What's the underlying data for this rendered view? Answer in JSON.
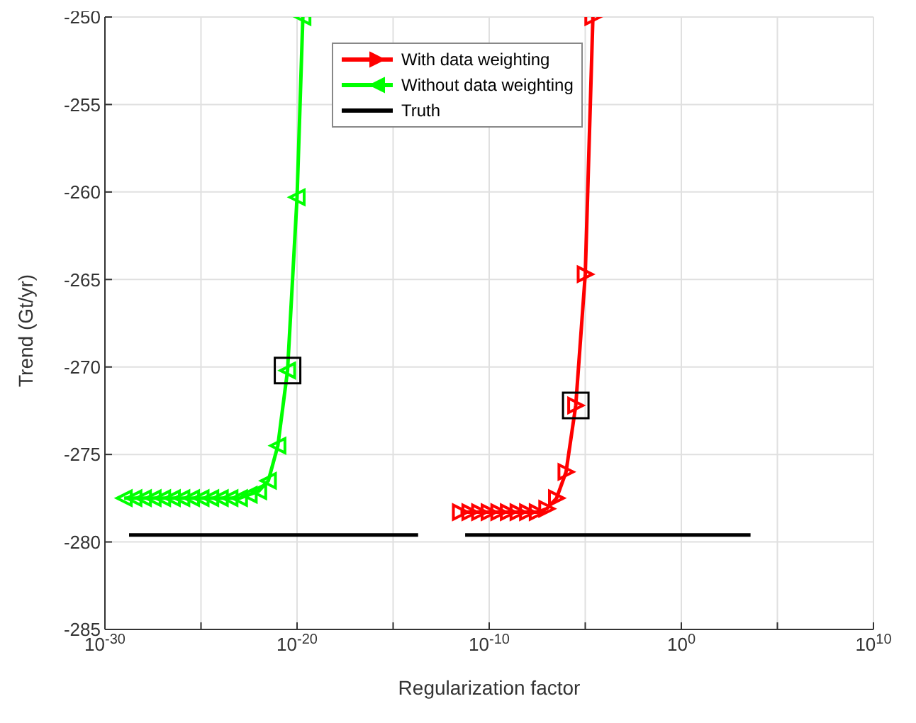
{
  "chart_data": {
    "type": "line",
    "xlabel": "Regularization factor",
    "ylabel": "Trend (Gt/yr)",
    "log": "x",
    "grid": true,
    "legend": "top right",
    "line_style": "solid",
    "xlim": [
      1e-30,
      10000000000.0
    ],
    "xticks": [
      {
        "value": 1e-30,
        "label": "10$^{-30}$"
      },
      {
        "value": 1e-25,
        "label": null
      },
      {
        "value": 1e-20,
        "label": "10$^{-20}$"
      },
      {
        "value": 1e-15,
        "label": null
      },
      {
        "value": 1e-10,
        "label": "10$^{-10}$"
      },
      {
        "value": 1e-05,
        "label": null
      },
      {
        "value": 1,
        "label": "10$^{0}$"
      },
      {
        "value": 100000.0,
        "label": null
      },
      {
        "value": 10000000000.0,
        "label": "10$^{10}$"
      }
    ],
    "ylim": [
      -285,
      -250
    ],
    "yticks": [
      -285,
      -280,
      -275,
      -270,
      -265,
      -260,
      -255,
      -250
    ],
    "series": [
      {
        "name": "With data weighting",
        "color": "#ff0000",
        "marker": "triangle-right",
        "x": [
          3.2e-12,
          1e-11,
          3.2e-11,
          1e-10,
          3.2e-10,
          1e-09,
          3.2e-09,
          1e-08,
          3.2e-08,
          1e-07,
          3.2e-07,
          1e-06,
          3.2e-06,
          1e-05,
          2.5e-05
        ],
        "values": [
          -278.3,
          -278.3,
          -278.3,
          -278.3,
          -278.3,
          -278.3,
          -278.3,
          -278.3,
          -278.3,
          -278.1,
          -277.5,
          -276,
          -272.2,
          -264.7,
          -250
        ]
      },
      {
        "name": "Without data weighting",
        "color": "#00ff00",
        "marker": "triangle-left",
        "x": [
          1e-29,
          3.2e-29,
          1e-28,
          3.2e-28,
          1e-27,
          3.2e-27,
          1e-26,
          3.2e-26,
          1e-25,
          3.2e-25,
          1e-24,
          3.2e-24,
          1e-23,
          3.2e-23,
          1e-22,
          3.2e-22,
          1e-21,
          3.2e-21,
          1e-20,
          2e-20
        ],
        "values": [
          -277.5,
          -277.5,
          -277.5,
          -277.5,
          -277.5,
          -277.5,
          -277.5,
          -277.5,
          -277.5,
          -277.5,
          -277.5,
          -277.5,
          -277.5,
          -277.3,
          -277.1,
          -276.5,
          -274.5,
          -270.2,
          -260.3,
          -250
        ]
      },
      {
        "name": "Truth",
        "color": "#000000",
        "marker": "none",
        "x": [
          1.8e-29,
          2e-14,
          1e-12,
          5.6e-12,
          4000.0
        ],
        "values": [
          -279.6,
          -279.6,
          null,
          -279.6,
          -279.6
        ]
      },
      {
        "type": "scatter",
        "color": "#000000",
        "marker": "square",
        "x": [
          3.2e-21,
          3.2e-06
        ],
        "values": [
          -270.2,
          -272.2
        ]
      }
    ]
  }
}
